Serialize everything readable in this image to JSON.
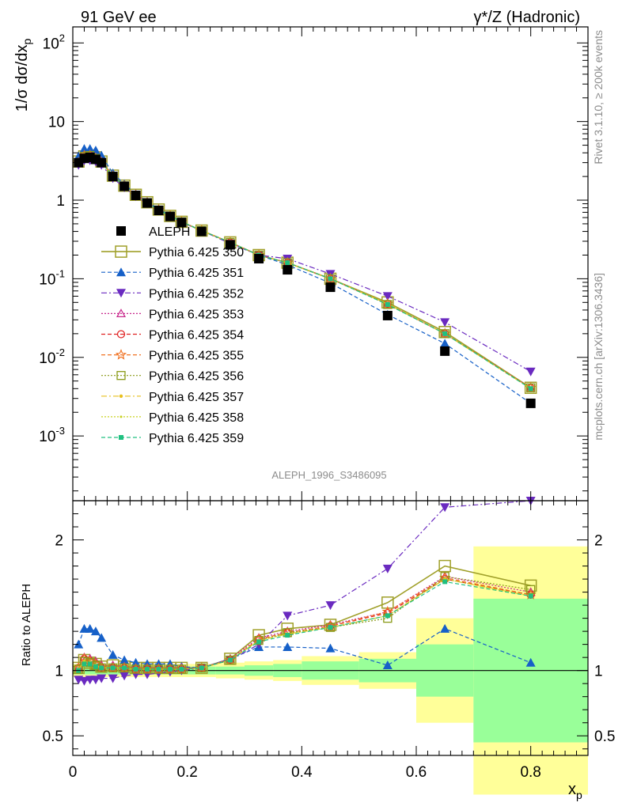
{
  "header": {
    "left": "91 GeV ee",
    "right": "γ*/Z (Hadronic)"
  },
  "side_labels": {
    "rivet": "Rivet 3.1.10, ≥ 200k events",
    "mcplots": "mcplots.cern.ch [arXiv:1306.3436]"
  },
  "watermark": "ALEPH_1996_S3486095",
  "chart_data": [
    {
      "type": "line",
      "panel": "main",
      "ylabel": "1/σ dσ/dx_p",
      "yscale": "log",
      "ylim": [
        0.00015,
        160
      ],
      "xlim": [
        0,
        0.9
      ],
      "yticks": [
        {
          "value": 0.001,
          "label": "10^-3"
        },
        {
          "value": 0.01,
          "label": "10^-2"
        },
        {
          "value": 0.1,
          "label": "10^-1"
        },
        {
          "value": 1,
          "label": "1"
        },
        {
          "value": 10,
          "label": "10"
        },
        {
          "value": 100,
          "label": "10^2"
        }
      ],
      "legend_position": "middle-left",
      "x": [
        0.01,
        0.02,
        0.03,
        0.04,
        0.05,
        0.07,
        0.09,
        0.11,
        0.13,
        0.15,
        0.17,
        0.19,
        0.225,
        0.275,
        0.325,
        0.375,
        0.45,
        0.55,
        0.65,
        0.8
      ],
      "series": [
        {
          "name": "ALEPH",
          "style": "data",
          "marker": "square-filled",
          "color": "#000000",
          "values": [
            3.0,
            3.4,
            3.5,
            3.3,
            3.0,
            2.0,
            1.5,
            1.15,
            0.92,
            0.74,
            0.62,
            0.52,
            0.4,
            0.27,
            0.18,
            0.13,
            0.078,
            0.034,
            0.012,
            0.0026
          ]
        },
        {
          "name": "Pythia 6.425 350",
          "style": "solid",
          "marker": "square-open-large",
          "color": "#a0a02a",
          "values": [
            3.1,
            3.6,
            3.7,
            3.5,
            3.1,
            2.05,
            1.53,
            1.17,
            0.94,
            0.76,
            0.63,
            0.53,
            0.41,
            0.29,
            0.2,
            0.16,
            0.1,
            0.05,
            0.021,
            0.0041
          ]
        },
        {
          "name": "Pythia 6.425 351",
          "style": "dashed",
          "marker": "triangle-up-filled",
          "color": "#1660c8",
          "values": [
            3.6,
            4.5,
            4.5,
            4.3,
            3.7,
            2.2,
            1.6,
            1.2,
            0.96,
            0.77,
            0.64,
            0.53,
            0.41,
            0.29,
            0.2,
            0.15,
            0.088,
            0.035,
            0.015,
            0.0026
          ]
        },
        {
          "name": "Pythia 6.425 352",
          "style": "dashdot",
          "marker": "triangle-down-filled",
          "color": "#6a2ac0",
          "values": [
            2.8,
            3.2,
            3.2,
            3.1,
            2.8,
            1.9,
            1.45,
            1.12,
            0.91,
            0.74,
            0.62,
            0.52,
            0.41,
            0.28,
            0.2,
            0.18,
            0.115,
            0.06,
            0.028,
            0.0066
          ]
        },
        {
          "name": "Pythia 6.425 353",
          "style": "dotted",
          "marker": "triangle-up-open",
          "color": "#c8288c",
          "values": [
            3.0,
            3.7,
            3.8,
            3.5,
            3.1,
            2.05,
            1.53,
            1.17,
            0.94,
            0.76,
            0.63,
            0.53,
            0.41,
            0.29,
            0.2,
            0.16,
            0.1,
            0.048,
            0.02,
            0.0041
          ]
        },
        {
          "name": "Pythia 6.425 354",
          "style": "dashed",
          "marker": "circle-open",
          "color": "#e02020",
          "values": [
            3.0,
            3.7,
            3.7,
            3.4,
            3.0,
            2.02,
            1.52,
            1.16,
            0.93,
            0.75,
            0.63,
            0.53,
            0.41,
            0.29,
            0.2,
            0.16,
            0.1,
            0.048,
            0.02,
            0.0041
          ]
        },
        {
          "name": "Pythia 6.425 355",
          "style": "dashed",
          "marker": "star-open",
          "color": "#f07020",
          "values": [
            3.0,
            3.7,
            3.7,
            3.4,
            3.0,
            2.02,
            1.52,
            1.16,
            0.93,
            0.75,
            0.63,
            0.53,
            0.41,
            0.29,
            0.2,
            0.16,
            0.1,
            0.048,
            0.02,
            0.0041
          ]
        },
        {
          "name": "Pythia 6.425 356",
          "style": "dotted",
          "marker": "square-open",
          "color": "#8a9a18",
          "values": [
            3.0,
            3.6,
            3.7,
            3.4,
            3.0,
            2.02,
            1.52,
            1.16,
            0.93,
            0.75,
            0.63,
            0.53,
            0.41,
            0.29,
            0.2,
            0.16,
            0.1,
            0.047,
            0.02,
            0.0041
          ]
        },
        {
          "name": "Pythia 6.425 357",
          "style": "dashdot",
          "marker": "dot",
          "color": "#e8c020",
          "values": [
            3.0,
            3.6,
            3.7,
            3.4,
            3.0,
            2.02,
            1.52,
            1.16,
            0.93,
            0.75,
            0.63,
            0.53,
            0.41,
            0.29,
            0.2,
            0.16,
            0.1,
            0.048,
            0.02,
            0.004
          ]
        },
        {
          "name": "Pythia 6.425 358",
          "style": "dotted",
          "marker": "dot-small",
          "color": "#c8d020",
          "values": [
            3.0,
            3.6,
            3.7,
            3.4,
            3.0,
            2.02,
            1.52,
            1.16,
            0.93,
            0.75,
            0.63,
            0.53,
            0.41,
            0.29,
            0.2,
            0.16,
            0.1,
            0.048,
            0.02,
            0.004
          ]
        },
        {
          "name": "Pythia 6.425 359",
          "style": "dashed",
          "marker": "square-filled-small",
          "color": "#20c080",
          "values": [
            3.0,
            3.6,
            3.7,
            3.4,
            3.0,
            2.02,
            1.52,
            1.16,
            0.93,
            0.75,
            0.63,
            0.53,
            0.41,
            0.29,
            0.2,
            0.16,
            0.1,
            0.047,
            0.02,
            0.004
          ]
        }
      ]
    },
    {
      "type": "line",
      "panel": "ratio",
      "ylabel": "Ratio to ALEPH",
      "xlabel": "x_p",
      "ylim": [
        0.35,
        2.3
      ],
      "xlim": [
        0,
        0.9
      ],
      "yticks": [
        0.5,
        1,
        2
      ],
      "xticks": [
        0,
        0.2,
        0.4,
        0.6,
        0.8
      ],
      "x": [
        0.01,
        0.02,
        0.03,
        0.04,
        0.05,
        0.07,
        0.09,
        0.11,
        0.13,
        0.15,
        0.17,
        0.19,
        0.225,
        0.275,
        0.325,
        0.375,
        0.45,
        0.55,
        0.65,
        0.8
      ],
      "uncertainty_bands": [
        {
          "x0": 0.0,
          "x1": 0.25,
          "green": 0.03,
          "yellow": 0.05
        },
        {
          "x0": 0.25,
          "x1": 0.3,
          "green": 0.03,
          "yellow": 0.06
        },
        {
          "x0": 0.3,
          "x1": 0.35,
          "green": 0.04,
          "yellow": 0.07
        },
        {
          "x0": 0.35,
          "x1": 0.4,
          "green": 0.05,
          "yellow": 0.08
        },
        {
          "x0": 0.4,
          "x1": 0.5,
          "green": 0.07,
          "yellow": 0.11
        },
        {
          "x0": 0.5,
          "x1": 0.6,
          "green": 0.09,
          "yellow": 0.14
        },
        {
          "x0": 0.6,
          "x1": 0.7,
          "green": 0.2,
          "yellow": 0.4
        },
        {
          "x0": 0.7,
          "x1": 0.9,
          "green": 0.55,
          "yellow": 0.95
        }
      ],
      "series": [
        {
          "name": "Pythia 6.425 350",
          "values": [
            1.02,
            1.08,
            1.06,
            1.05,
            1.03,
            1.04,
            1.03,
            1.02,
            1.02,
            1.02,
            1.02,
            1.02,
            1.02,
            1.09,
            1.27,
            1.32,
            1.35,
            1.52,
            1.8,
            1.65
          ]
        },
        {
          "name": "Pythia 6.425 351",
          "values": [
            1.2,
            1.32,
            1.32,
            1.3,
            1.25,
            1.12,
            1.08,
            1.06,
            1.05,
            1.05,
            1.05,
            1.03,
            1.02,
            1.09,
            1.18,
            1.18,
            1.17,
            1.04,
            1.32,
            1.06
          ]
        },
        {
          "name": "Pythia 6.425 352",
          "values": [
            0.93,
            0.92,
            0.93,
            0.93,
            0.94,
            0.94,
            0.96,
            0.97,
            0.97,
            0.98,
            0.99,
            1.0,
            1.02,
            1.08,
            1.2,
            1.42,
            1.5,
            1.78,
            2.25,
            2.3
          ]
        },
        {
          "name": "Pythia 6.425 353",
          "values": [
            1.02,
            1.1,
            1.09,
            1.07,
            1.04,
            1.04,
            1.03,
            1.02,
            1.02,
            1.02,
            1.02,
            1.02,
            1.02,
            1.09,
            1.25,
            1.3,
            1.35,
            1.45,
            1.72,
            1.6
          ]
        },
        {
          "name": "Pythia 6.425 354",
          "values": [
            1.02,
            1.09,
            1.07,
            1.05,
            1.02,
            1.02,
            1.02,
            1.01,
            1.01,
            1.01,
            1.01,
            1.01,
            1.02,
            1.08,
            1.24,
            1.29,
            1.34,
            1.44,
            1.7,
            1.58
          ]
        },
        {
          "name": "Pythia 6.425 355",
          "values": [
            1.02,
            1.09,
            1.07,
            1.05,
            1.02,
            1.02,
            1.02,
            1.01,
            1.01,
            1.01,
            1.01,
            1.01,
            1.02,
            1.08,
            1.24,
            1.29,
            1.34,
            1.45,
            1.71,
            1.58
          ]
        },
        {
          "name": "Pythia 6.425 356",
          "values": [
            1.01,
            1.07,
            1.06,
            1.04,
            1.02,
            1.02,
            1.02,
            1.01,
            1.01,
            1.01,
            1.01,
            1.01,
            1.02,
            1.08,
            1.23,
            1.29,
            1.33,
            1.4,
            1.72,
            1.62
          ]
        },
        {
          "name": "Pythia 6.425 357",
          "values": [
            1.01,
            1.07,
            1.06,
            1.04,
            1.02,
            1.02,
            1.02,
            1.01,
            1.01,
            1.01,
            1.01,
            1.01,
            1.02,
            1.08,
            1.23,
            1.28,
            1.33,
            1.42,
            1.7,
            1.57
          ]
        },
        {
          "name": "Pythia 6.425 358",
          "values": [
            1.01,
            1.07,
            1.06,
            1.04,
            1.02,
            1.02,
            1.02,
            1.01,
            1.01,
            1.01,
            1.01,
            1.01,
            1.02,
            1.08,
            1.23,
            1.28,
            1.33,
            1.42,
            1.7,
            1.57
          ]
        },
        {
          "name": "Pythia 6.425 359",
          "values": [
            1.0,
            1.05,
            1.05,
            1.03,
            1.02,
            1.02,
            1.02,
            1.01,
            1.01,
            1.01,
            1.01,
            1.01,
            1.02,
            1.08,
            1.22,
            1.27,
            1.33,
            1.42,
            1.68,
            1.57
          ]
        }
      ]
    }
  ]
}
